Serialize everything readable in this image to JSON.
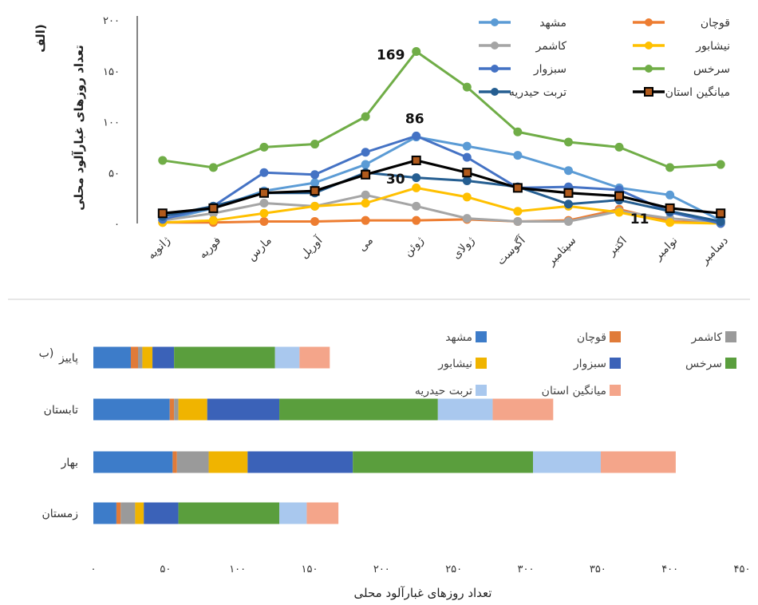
{
  "figure": {
    "panel_label": "الف)",
    "panel_label_b": "ب)"
  },
  "chart_data": [
    {
      "type": "line",
      "ylabel": "تعداد روزهای غبارآلود محلی",
      "ylim": [
        0,
        200
      ],
      "yticks": [
        "۰",
        "۵۰",
        "۱۰۰",
        "۱۵۰",
        "۲۰۰"
      ],
      "ytick_values": [
        0,
        50,
        100,
        150,
        200
      ],
      "categories": [
        "ژانویه",
        "فوریه",
        "مارس",
        "آوریل",
        "می",
        "ژوئن",
        "ژولای",
        "آگوست",
        "سپتامبر",
        "اکتبر",
        "نوامبر",
        "دسامبر"
      ],
      "legend_position": "top-right",
      "series": [
        {
          "name": "مشهد",
          "color": "#5b9bd5",
          "values": [
            3,
            15,
            32,
            40,
            58,
            85,
            76,
            67,
            52,
            35,
            28,
            3
          ]
        },
        {
          "name": "قوچان",
          "color": "#ed7d31",
          "values": [
            1,
            1,
            2,
            2,
            3,
            3,
            4,
            2,
            3,
            14,
            2,
            1
          ]
        },
        {
          "name": "کاشمر",
          "color": "#a5a5a5",
          "values": [
            3,
            10,
            20,
            17,
            28,
            17,
            5,
            2,
            2,
            12,
            5,
            1
          ]
        },
        {
          "name": "نیشابور",
          "color": "#ffc000",
          "values": [
            1,
            3,
            10,
            17,
            20,
            35,
            26,
            12,
            17,
            11,
            1,
            0
          ]
        },
        {
          "name": "سبزوار",
          "color": "#4472c4",
          "values": [
            4,
            17,
            50,
            48,
            70,
            86,
            65,
            35,
            36,
            33,
            11,
            0
          ]
        },
        {
          "name": "سرخس",
          "color": "#70ad47",
          "values": [
            62,
            55,
            75,
            78,
            105,
            169,
            134,
            90,
            80,
            75,
            55,
            58
          ]
        },
        {
          "name": "تربت حیدریه",
          "color": "#255e91",
          "values": [
            7,
            17,
            30,
            30,
            50,
            45,
            42,
            36,
            19,
            23,
            12,
            2
          ]
        },
        {
          "name": "میانگین استان",
          "color": "#000000",
          "values": [
            10,
            15,
            30,
            32,
            48,
            62,
            50,
            35,
            30,
            27,
            15,
            10
          ]
        }
      ],
      "annotations": [
        {
          "text": "169",
          "x": "ژوئن",
          "y": 169
        },
        {
          "text": "86",
          "x": "ژوئن",
          "y": 86
        },
        {
          "text": "30",
          "x": "ژوئن",
          "y": 30
        },
        {
          "text": "11",
          "x": "نوامبر",
          "y": 11
        }
      ]
    },
    {
      "type": "bar",
      "orientation": "horizontal",
      "stacked": true,
      "xlabel": "تعداد روزهای غبارآلود محلی",
      "xlim": [
        0,
        450
      ],
      "xticks": [
        "۰",
        "۵۰",
        "۱۰۰",
        "۱۵۰",
        "۲۰۰",
        "۲۵۰",
        "۳۰۰",
        "۳۵۰",
        "۴۰۰",
        "۴۵۰"
      ],
      "xtick_values": [
        0,
        50,
        100,
        150,
        200,
        250,
        300,
        350,
        400,
        450
      ],
      "categories": [
        "پاییز",
        "تابستان",
        "بهار",
        "زمستان"
      ],
      "legend_position": "top-right",
      "series": [
        {
          "name": "مشهد",
          "color": "#3d7cc9",
          "values": [
            26,
            53,
            55,
            16
          ]
        },
        {
          "name": "قوچان",
          "color": "#e07b39",
          "values": [
            5,
            3,
            3,
            3
          ]
        },
        {
          "name": "کاشمر",
          "color": "#9a9a9a",
          "values": [
            3,
            3,
            22,
            10
          ]
        },
        {
          "name": "نیشابور",
          "color": "#f0b400",
          "values": [
            7,
            20,
            27,
            6
          ]
        },
        {
          "name": "سبزوار",
          "color": "#3b62b8",
          "values": [
            15,
            50,
            73,
            24
          ]
        },
        {
          "name": "سرخس",
          "color": "#5a9e3d",
          "values": [
            70,
            110,
            125,
            70
          ]
        },
        {
          "name": "تربت حیدریه",
          "color": "#a9c8ee",
          "values": [
            17,
            38,
            47,
            19
          ]
        },
        {
          "name": "میانگین استان",
          "color": "#f4a58a",
          "values": [
            21,
            42,
            52,
            22
          ]
        }
      ]
    }
  ]
}
